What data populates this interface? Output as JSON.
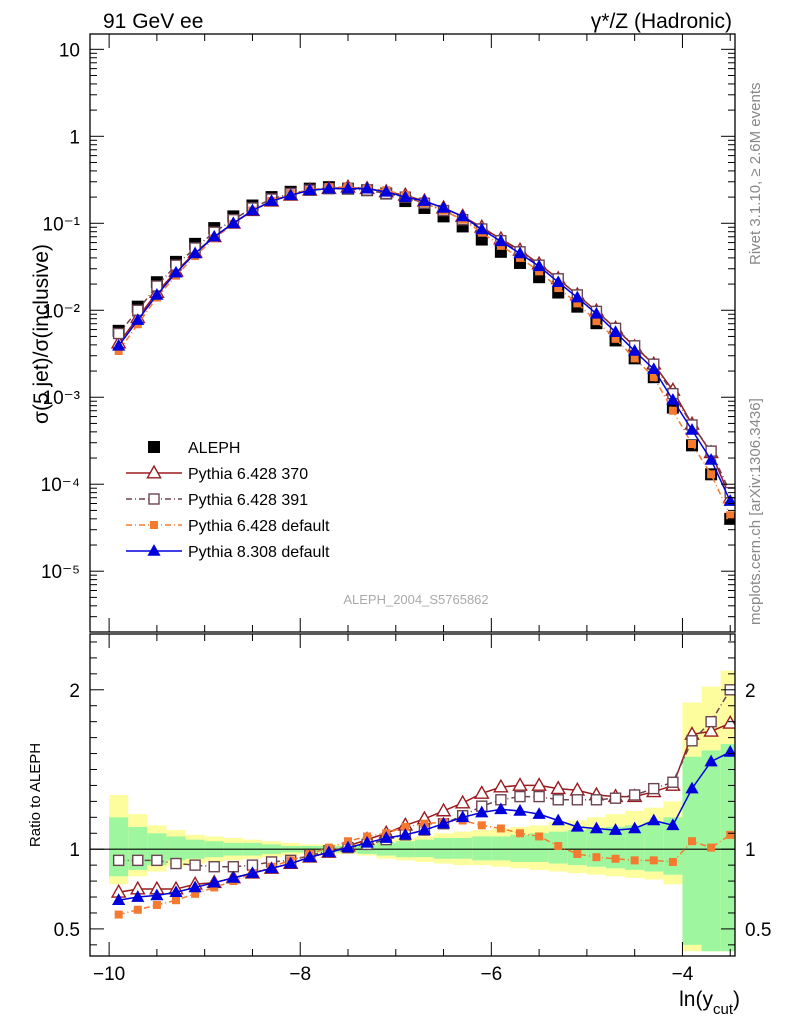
{
  "header": {
    "left": "91 GeV ee",
    "right": "γ*/Z (Hadronic)"
  },
  "side_labels": {
    "rivet": "Rivet 3.1.10, ≥ 2.6M events",
    "mcplots": "mcplots.cern.ch [arXiv:1306.3436]"
  },
  "watermark": "ALEPH_2004_S5765862",
  "colors": {
    "ALEPH": "#000000",
    "Pythia 6.428 370": "#9b1b1f",
    "Pythia 6.428 391": "#6b4452",
    "Pythia 6.428 default": "#f47a30",
    "Pythia 8.308 default": "#0000dd",
    "band_inner": "#9ef79e",
    "band_outer": "#fdfd9e"
  },
  "chart_data": [
    {
      "type": "line",
      "ylabel": "σ(5 jet)/σ(inclusive)",
      "yscale": "log",
      "xlim": [
        -10.2,
        -3.45
      ],
      "ylim": [
        2e-06,
        15
      ],
      "ytick_labels": [
        "10⁻⁵",
        "10⁻⁴",
        "10⁻³",
        "10⁻²",
        "10⁻¹",
        "1",
        "10"
      ],
      "legend_placement": "middle-left",
      "legend": [
        "ALEPH",
        "Pythia 6.428 370",
        "Pythia 6.428 391",
        "Pythia 6.428 default",
        "Pythia 8.308 default"
      ],
      "x": [
        -9.9,
        -9.7,
        -9.5,
        -9.3,
        -9.1,
        -8.9,
        -8.7,
        -8.5,
        -8.3,
        -8.1,
        -7.9,
        -7.7,
        -7.5,
        -7.3,
        -7.1,
        -6.9,
        -6.7,
        -6.5,
        -6.3,
        -6.1,
        -5.9,
        -5.7,
        -5.5,
        -5.3,
        -5.1,
        -4.9,
        -4.7,
        -4.5,
        -4.3,
        -4.1,
        -3.9,
        -3.7,
        -3.5
      ],
      "series": [
        {
          "name": "ALEPH",
          "values": [
            0.0058,
            0.011,
            0.021,
            0.036,
            0.058,
            0.088,
            0.12,
            0.16,
            0.2,
            0.23,
            0.25,
            0.26,
            0.25,
            0.24,
            0.22,
            0.18,
            0.15,
            0.12,
            0.092,
            0.065,
            0.047,
            0.035,
            0.024,
            0.016,
            0.011,
            0.0071,
            0.0045,
            0.0028,
            0.0017,
            0.00076,
            0.00028,
            0.00013,
            4e-05
          ]
        },
        {
          "name": "Pythia 6.428 370",
          "values": [
            0.0042,
            0.0082,
            0.016,
            0.028,
            0.046,
            0.07,
            0.1,
            0.14,
            0.18,
            0.21,
            0.24,
            0.25,
            0.26,
            0.25,
            0.23,
            0.21,
            0.18,
            0.15,
            0.12,
            0.09,
            0.066,
            0.049,
            0.034,
            0.023,
            0.015,
            0.0098,
            0.0062,
            0.0038,
            0.0024,
            0.0012,
            0.00049,
            0.00023,
            7e-05
          ]
        },
        {
          "name": "Pythia 6.428 391",
          "values": [
            0.0054,
            0.01,
            0.019,
            0.033,
            0.052,
            0.079,
            0.11,
            0.15,
            0.19,
            0.22,
            0.24,
            0.25,
            0.25,
            0.24,
            0.22,
            0.2,
            0.17,
            0.14,
            0.11,
            0.086,
            0.063,
            0.047,
            0.033,
            0.023,
            0.015,
            0.0097,
            0.0062,
            0.0039,
            0.0024,
            0.0011,
            0.00048,
            0.00024,
            8e-05
          ]
        },
        {
          "name": "Pythia 6.428 default",
          "values": [
            0.0034,
            0.0069,
            0.014,
            0.025,
            0.042,
            0.067,
            0.098,
            0.14,
            0.18,
            0.22,
            0.24,
            0.26,
            0.26,
            0.25,
            0.24,
            0.21,
            0.17,
            0.14,
            0.11,
            0.078,
            0.055,
            0.04,
            0.028,
            0.018,
            0.012,
            0.0075,
            0.0047,
            0.0028,
            0.0017,
            0.0007,
            0.00029,
            0.00013,
            4.4e-05
          ]
        },
        {
          "name": "Pythia 8.308 default",
          "values": [
            0.0039,
            0.0077,
            0.015,
            0.027,
            0.045,
            0.07,
            0.1,
            0.14,
            0.18,
            0.21,
            0.24,
            0.25,
            0.25,
            0.25,
            0.23,
            0.2,
            0.18,
            0.15,
            0.12,
            0.085,
            0.062,
            0.045,
            0.032,
            0.021,
            0.014,
            0.0091,
            0.0056,
            0.0034,
            0.0021,
            0.00093,
            0.00042,
            0.00019,
            6.4e-05
          ]
        }
      ]
    },
    {
      "type": "line",
      "xlabel": "ln(y_cut)",
      "ylabel": "Ratio to ALEPH",
      "xlim": [
        -10.2,
        -3.45
      ],
      "ylim": [
        0.33,
        2.35
      ],
      "xtick_labels": [
        "−10",
        "−8",
        "−6",
        "−4"
      ],
      "ytick_labels": [
        "0.5",
        "1",
        "2"
      ],
      "x": [
        -9.9,
        -9.7,
        -9.5,
        -9.3,
        -9.1,
        -8.9,
        -8.7,
        -8.5,
        -8.3,
        -8.1,
        -7.9,
        -7.7,
        -7.5,
        -7.3,
        -7.1,
        -6.9,
        -6.7,
        -6.5,
        -6.3,
        -6.1,
        -5.9,
        -5.7,
        -5.5,
        -5.3,
        -5.1,
        -4.9,
        -4.7,
        -4.5,
        -4.3,
        -4.1,
        -3.9,
        -3.7,
        -3.5
      ],
      "band_inner": {
        "lo": [
          0.83,
          0.87,
          0.9,
          0.93,
          0.94,
          0.95,
          0.96,
          0.96,
          0.97,
          0.98,
          0.98,
          0.98,
          0.98,
          0.97,
          0.96,
          0.95,
          0.95,
          0.94,
          0.94,
          0.93,
          0.93,
          0.92,
          0.92,
          0.91,
          0.9,
          0.89,
          0.88,
          0.87,
          0.86,
          0.84,
          0.4,
          0.36,
          0.36
        ],
        "hi": [
          1.2,
          1.14,
          1.1,
          1.08,
          1.06,
          1.05,
          1.04,
          1.04,
          1.03,
          1.02,
          1.02,
          1.02,
          1.02,
          1.03,
          1.04,
          1.05,
          1.06,
          1.07,
          1.07,
          1.08,
          1.08,
          1.09,
          1.1,
          1.11,
          1.12,
          1.13,
          1.14,
          1.15,
          1.17,
          1.2,
          1.58,
          1.62,
          1.66
        ]
      },
      "band_outer": {
        "lo": [
          0.78,
          0.83,
          0.86,
          0.89,
          0.91,
          0.92,
          0.93,
          0.94,
          0.95,
          0.96,
          0.97,
          0.97,
          0.97,
          0.96,
          0.94,
          0.93,
          0.92,
          0.91,
          0.9,
          0.9,
          0.89,
          0.88,
          0.87,
          0.86,
          0.85,
          0.84,
          0.83,
          0.82,
          0.81,
          0.78,
          0.36,
          0.36,
          0.36
        ],
        "hi": [
          1.34,
          1.22,
          1.15,
          1.12,
          1.09,
          1.08,
          1.07,
          1.06,
          1.05,
          1.04,
          1.03,
          1.03,
          1.03,
          1.04,
          1.06,
          1.07,
          1.08,
          1.1,
          1.11,
          1.12,
          1.13,
          1.14,
          1.15,
          1.17,
          1.18,
          1.2,
          1.22,
          1.24,
          1.26,
          1.3,
          1.92,
          2.02,
          2.12
        ]
      },
      "reference_line": 1,
      "series": [
        {
          "name": "Pythia 6.428 370",
          "values": [
            0.73,
            0.75,
            0.75,
            0.75,
            0.78,
            0.79,
            0.82,
            0.85,
            0.88,
            0.91,
            0.95,
            0.98,
            1.02,
            1.06,
            1.1,
            1.15,
            1.19,
            1.24,
            1.29,
            1.35,
            1.39,
            1.4,
            1.4,
            1.38,
            1.37,
            1.34,
            1.33,
            1.33,
            1.36,
            1.4,
            1.72,
            1.74,
            1.79
          ]
        },
        {
          "name": "Pythia 6.428 391",
          "values": [
            0.93,
            0.93,
            0.93,
            0.91,
            0.9,
            0.89,
            0.89,
            0.9,
            0.92,
            0.93,
            0.96,
            0.99,
            1.01,
            1.03,
            1.06,
            1.09,
            1.12,
            1.16,
            1.21,
            1.27,
            1.31,
            1.33,
            1.33,
            1.31,
            1.31,
            1.31,
            1.32,
            1.34,
            1.38,
            1.42,
            1.68,
            1.8,
            2.0
          ]
        },
        {
          "name": "Pythia 6.428 default",
          "values": [
            0.59,
            0.62,
            0.65,
            0.68,
            0.72,
            0.76,
            0.8,
            0.85,
            0.89,
            0.93,
            0.97,
            1.01,
            1.05,
            1.08,
            1.1,
            1.14,
            1.16,
            1.17,
            1.18,
            1.15,
            1.13,
            1.1,
            1.08,
            1.02,
            0.97,
            0.95,
            0.94,
            0.93,
            0.93,
            0.92,
            1.05,
            1.01,
            1.09
          ]
        },
        {
          "name": "Pythia 8.308 default",
          "values": [
            0.68,
            0.7,
            0.71,
            0.73,
            0.76,
            0.79,
            0.82,
            0.85,
            0.88,
            0.91,
            0.95,
            0.98,
            1.01,
            1.04,
            1.07,
            1.09,
            1.12,
            1.16,
            1.2,
            1.23,
            1.25,
            1.24,
            1.22,
            1.18,
            1.14,
            1.13,
            1.12,
            1.13,
            1.18,
            1.15,
            1.38,
            1.55,
            1.61
          ]
        }
      ]
    }
  ]
}
